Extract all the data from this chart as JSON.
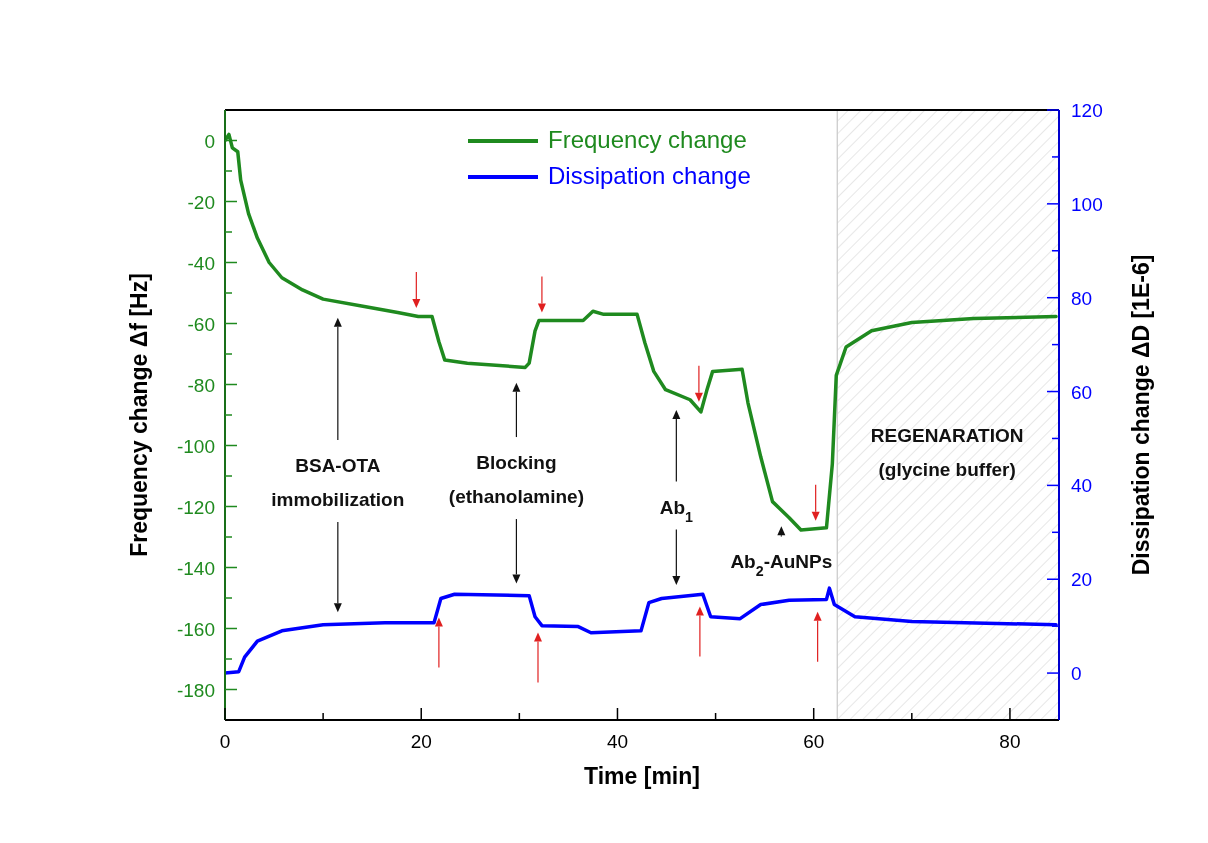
{
  "chart_data": {
    "type": "line",
    "xlabel": "Time [min]",
    "ylabel": "Frequency change Δf [Hz]",
    "y2label": "Dissipation change ΔD [1E-6]",
    "xlim": [
      0,
      85
    ],
    "xticks": [
      0,
      {
        "value": 10,
        "label": null
      },
      20,
      {
        "value": 30,
        "label": null
      },
      40,
      {
        "value": 50,
        "label": null
      },
      60,
      {
        "value": 70,
        "label": null
      },
      80
    ],
    "ylim": [
      -190,
      10
    ],
    "yticks": [
      0,
      {
        "value": -10,
        "label": null
      },
      -20,
      {
        "value": -30,
        "label": null
      },
      -40,
      {
        "value": -50,
        "label": null
      },
      -60,
      {
        "value": -70,
        "label": null
      },
      -80,
      {
        "value": -90,
        "label": null
      },
      -100,
      {
        "value": -110,
        "label": null
      },
      -120,
      {
        "value": -130,
        "label": null
      },
      -140,
      {
        "value": -150,
        "label": null
      },
      -160,
      {
        "value": -170,
        "label": null
      },
      -180
    ],
    "y2lim": [
      -10,
      120
    ],
    "y2ticks": [
      0,
      {
        "value": 10,
        "label": null
      },
      20,
      {
        "value": 30,
        "label": null
      },
      40,
      {
        "value": 50,
        "label": null
      },
      60,
      {
        "value": 70,
        "label": null
      },
      80,
      {
        "value": 90,
        "label": null
      },
      100,
      {
        "value": 110,
        "label": null
      },
      120
    ],
    "legend": "top",
    "grid": false,
    "line_style": "solid",
    "marker": "none",
    "bands": [
      {
        "axis": "x",
        "from": 62.4,
        "to": 85
      }
    ],
    "ref_lines": [
      {
        "axis": "x",
        "value": 62.4,
        "color": "#c8c8c8"
      }
    ],
    "annotations": [
      "BSA-OTA\nimmobilization",
      "Blocking\n(ethanolamine)",
      "Ab$_{1}$",
      "Ab$_{2}$-AuNPs",
      "REGENARATION\n(glycine buffer)"
    ],
    "series": [
      {
        "name": "Frequency change",
        "color": "#1f8a1f",
        "x": [
          0,
          0.4,
          0.75,
          1.3,
          1.6,
          2.4,
          3.3,
          4.5,
          5.8,
          7.9,
          10,
          14.2,
          17.6,
          19.7,
          21.1,
          21.8,
          22.4,
          24.7,
          30.6,
          31,
          31.6,
          32,
          36.5,
          37.5,
          38.6,
          41.1,
          42,
          42.8,
          43.7,
          44.9,
          47.4,
          48.5,
          49.1,
          49.7,
          52.7,
          53.3,
          54.6,
          55.8,
          57.5,
          58.7,
          61.3,
          61.9,
          62.3,
          63.3,
          65.9,
          70,
          76.3,
          84.7
        ],
        "values": [
          0,
          2,
          -2.4,
          -3.7,
          -13,
          -24,
          -32,
          -40,
          -45,
          -49,
          -52,
          -54.4,
          -56.4,
          -57.7,
          -57.7,
          -66,
          -72,
          -73,
          -74.4,
          -73,
          -62.4,
          -59,
          -59,
          -56,
          -57,
          -57,
          -57,
          -66.4,
          -75.7,
          -81.7,
          -85,
          -89,
          -82,
          -75.7,
          -75,
          -86,
          -103.7,
          -118.4,
          -123.7,
          -127.7,
          -127,
          -106,
          -77,
          -67.7,
          -62.4,
          -59.7,
          -58.4,
          -57.7
        ]
      },
      {
        "name": "Dissipation change",
        "color": "#0000ff",
        "axis": "y2",
        "x": [
          0,
          1.4,
          2,
          3.3,
          5.8,
          10,
          16.3,
          21.3,
          22,
          23.4,
          31,
          31.6,
          32.3,
          36,
          37.3,
          42.4,
          43.2,
          44.5,
          48.7,
          49.5,
          52.5,
          54.6,
          57.5,
          61.3,
          61.6,
          62.1,
          64.2,
          70,
          84.7
        ],
        "values": [
          0,
          0.3,
          3.4,
          6.8,
          9,
          10.3,
          10.7,
          10.7,
          15.9,
          16.8,
          16.5,
          12,
          10.1,
          9.9,
          8.6,
          9,
          15,
          15.9,
          16.8,
          12,
          11.6,
          14.6,
          15.5,
          15.7,
          18.1,
          14.6,
          12,
          11,
          10.3
        ]
      }
    ]
  }
}
